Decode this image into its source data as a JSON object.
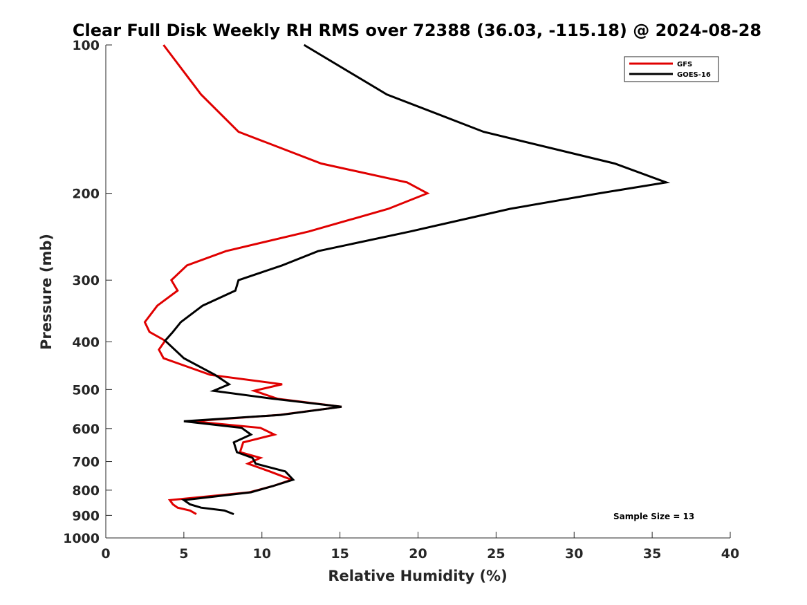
{
  "chart_data": {
    "type": "line",
    "title": "Clear Full Disk Weekly RH RMS over 72388 (36.03, -115.18) @ 2024-08-28",
    "xlabel": "Relative Humidity (%)",
    "ylabel": "Pressure (mb)",
    "xlim": [
      0,
      40
    ],
    "ylim": [
      100,
      1000
    ],
    "y_scale": "log",
    "y_reversed": true,
    "x_ticks": [
      0,
      5,
      10,
      15,
      20,
      25,
      30,
      35,
      40
    ],
    "y_ticks": [
      100,
      200,
      300,
      400,
      500,
      600,
      700,
      800,
      900,
      1000
    ],
    "grid": false,
    "legend_position": "top-right",
    "annotation": "Sample Size = 13",
    "series": [
      {
        "name": "GFS",
        "color": "#e00000",
        "points": [
          [
            3.7,
            100
          ],
          [
            6.1,
            126
          ],
          [
            8.5,
            150
          ],
          [
            13.8,
            174
          ],
          [
            19.3,
            190
          ],
          [
            20.6,
            200
          ],
          [
            18.1,
            215
          ],
          [
            13.0,
            239
          ],
          [
            7.7,
            262
          ],
          [
            5.2,
            280
          ],
          [
            4.2,
            300
          ],
          [
            4.6,
            315
          ],
          [
            3.3,
            338
          ],
          [
            2.5,
            365
          ],
          [
            2.8,
            382
          ],
          [
            3.8,
            398
          ],
          [
            3.4,
            415
          ],
          [
            3.7,
            432
          ],
          [
            6.7,
            467
          ],
          [
            11.3,
            488
          ],
          [
            9.5,
            503
          ],
          [
            11.0,
            522
          ],
          [
            15.1,
            542
          ],
          [
            11.1,
            563
          ],
          [
            5.5,
            580
          ],
          [
            9.9,
            598
          ],
          [
            10.8,
            617
          ],
          [
            8.8,
            640
          ],
          [
            8.6,
            670
          ],
          [
            9.9,
            688
          ],
          [
            9.1,
            707
          ],
          [
            10.5,
            733
          ],
          [
            11.9,
            762
          ],
          [
            10.7,
            785
          ],
          [
            9.2,
            808
          ],
          [
            4.1,
            838
          ],
          [
            4.3,
            855
          ],
          [
            4.6,
            868
          ],
          [
            5.4,
            880
          ],
          [
            5.8,
            895
          ]
        ]
      },
      {
        "name": "GOES-16",
        "color": "#000000",
        "points": [
          [
            12.7,
            100
          ],
          [
            18.0,
            126
          ],
          [
            24.2,
            150
          ],
          [
            32.6,
            174
          ],
          [
            35.9,
            190
          ],
          [
            31.6,
            200
          ],
          [
            25.9,
            215
          ],
          [
            19.5,
            239
          ],
          [
            13.6,
            262
          ],
          [
            11.3,
            280
          ],
          [
            8.5,
            300
          ],
          [
            8.3,
            315
          ],
          [
            6.2,
            338
          ],
          [
            4.8,
            365
          ],
          [
            4.3,
            382
          ],
          [
            3.8,
            398
          ],
          [
            5.0,
            432
          ],
          [
            7.0,
            467
          ],
          [
            7.9,
            488
          ],
          [
            6.9,
            503
          ],
          [
            10.7,
            522
          ],
          [
            15.1,
            542
          ],
          [
            11.2,
            563
          ],
          [
            5.0,
            580
          ],
          [
            8.7,
            598
          ],
          [
            9.3,
            617
          ],
          [
            8.2,
            640
          ],
          [
            8.4,
            670
          ],
          [
            9.4,
            688
          ],
          [
            9.6,
            707
          ],
          [
            11.5,
            733
          ],
          [
            12.0,
            762
          ],
          [
            10.7,
            785
          ],
          [
            9.3,
            808
          ],
          [
            5.0,
            838
          ],
          [
            5.4,
            855
          ],
          [
            6.1,
            868
          ],
          [
            7.6,
            880
          ],
          [
            8.2,
            895
          ]
        ]
      }
    ]
  }
}
